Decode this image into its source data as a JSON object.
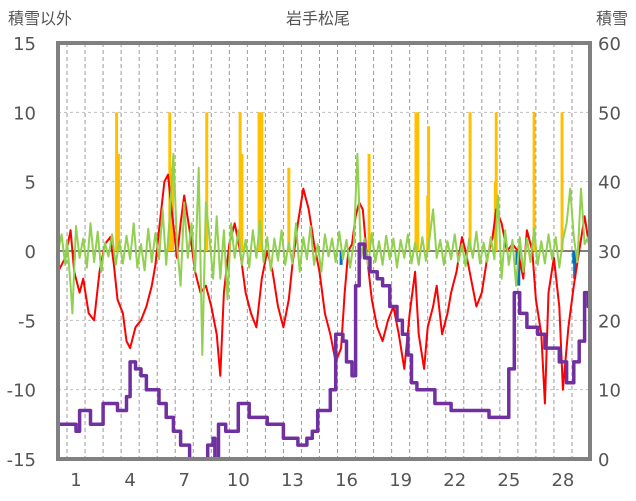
{
  "chart_data": {
    "type": "line",
    "title": "岩手松尾",
    "left_axis": {
      "label": "積雪以外",
      "ylim": [
        -15,
        15
      ],
      "ticks": [
        15,
        10,
        5,
        0,
        -5,
        -10,
        -15
      ]
    },
    "right_axis": {
      "label": "積雪",
      "ylim": [
        0,
        60
      ],
      "ticks": [
        60,
        50,
        40,
        30,
        20,
        10,
        0
      ]
    },
    "x_axis": {
      "xlim": [
        0,
        29.5
      ],
      "tick_labels": [
        "1",
        "4",
        "7",
        "10",
        "13",
        "16",
        "19",
        "22",
        "25",
        "28"
      ],
      "tick_values": [
        1,
        4,
        7,
        10,
        13,
        16,
        19,
        22,
        25,
        28
      ]
    },
    "gridlines": {
      "horizontal": "dashed",
      "vertical": "dashed-daily"
    },
    "colors": {
      "snow_depth": "#7030a0",
      "precipitation": "#ffc000",
      "temperature": "#ff0000",
      "temp_change": "#92d050",
      "neg_bars": "#0070c0",
      "frame": "#808080"
    },
    "snow_depth": [
      [
        0,
        5
      ],
      [
        0.8,
        5
      ],
      [
        1.0,
        4
      ],
      [
        1.2,
        7
      ],
      [
        1.6,
        7
      ],
      [
        1.8,
        5
      ],
      [
        2.2,
        5
      ],
      [
        2.5,
        8
      ],
      [
        3.0,
        8
      ],
      [
        3.3,
        7
      ],
      [
        3.8,
        9
      ],
      [
        4.0,
        14
      ],
      [
        4.3,
        13
      ],
      [
        4.6,
        12
      ],
      [
        4.9,
        10
      ],
      [
        5.3,
        10
      ],
      [
        5.6,
        8
      ],
      [
        6.0,
        6
      ],
      [
        6.4,
        4
      ],
      [
        6.8,
        2
      ],
      [
        7.3,
        0
      ],
      [
        7.9,
        0
      ],
      [
        8.3,
        2
      ],
      [
        8.6,
        3
      ],
      [
        8.7,
        0
      ],
      [
        8.9,
        5
      ],
      [
        9.3,
        4
      ],
      [
        9.8,
        4
      ],
      [
        10.0,
        8
      ],
      [
        10.3,
        8
      ],
      [
        10.6,
        6
      ],
      [
        11.2,
        6
      ],
      [
        11.6,
        5
      ],
      [
        12.2,
        5
      ],
      [
        12.5,
        3
      ],
      [
        13.0,
        3
      ],
      [
        13.3,
        2
      ],
      [
        13.8,
        3
      ],
      [
        14.1,
        4
      ],
      [
        14.4,
        7
      ],
      [
        14.8,
        7
      ],
      [
        15.1,
        10
      ],
      [
        15.4,
        18
      ],
      [
        15.8,
        17
      ],
      [
        16.0,
        14
      ],
      [
        16.3,
        12
      ],
      [
        16.5,
        25
      ],
      [
        16.7,
        31
      ],
      [
        17.0,
        29
      ],
      [
        17.3,
        27
      ],
      [
        17.7,
        26
      ],
      [
        18.0,
        25
      ],
      [
        18.4,
        22
      ],
      [
        18.8,
        20
      ],
      [
        19.1,
        18
      ],
      [
        19.4,
        15
      ],
      [
        19.6,
        11
      ],
      [
        19.9,
        10
      ],
      [
        20.4,
        10
      ],
      [
        20.9,
        8
      ],
      [
        21.4,
        8
      ],
      [
        21.8,
        7
      ],
      [
        22.6,
        7
      ],
      [
        23.2,
        7
      ],
      [
        23.9,
        6
      ],
      [
        24.6,
        6
      ],
      [
        25.0,
        13
      ],
      [
        25.3,
        24
      ],
      [
        25.6,
        21
      ],
      [
        26.0,
        19
      ],
      [
        26.6,
        18
      ],
      [
        27.0,
        16
      ],
      [
        27.8,
        14
      ],
      [
        28.2,
        11
      ],
      [
        28.6,
        14
      ],
      [
        28.9,
        17
      ],
      [
        29.2,
        24
      ],
      [
        29.4,
        22
      ],
      [
        29.5,
        23
      ]
    ],
    "precipitation_spikes": [
      [
        3.25,
        10
      ],
      [
        3.35,
        7
      ],
      [
        6.2,
        10
      ],
      [
        6.35,
        6
      ],
      [
        8.25,
        10
      ],
      [
        10.1,
        10
      ],
      [
        10.2,
        7
      ],
      [
        11.15,
        10
      ],
      [
        11.3,
        10
      ],
      [
        12.8,
        6
      ],
      [
        17.25,
        7
      ],
      [
        19.85,
        10
      ],
      [
        19.95,
        10
      ],
      [
        20.5,
        4
      ],
      [
        20.55,
        9
      ],
      [
        22.85,
        10
      ],
      [
        24.25,
        5
      ],
      [
        24.3,
        10
      ],
      [
        26.4,
        10
      ],
      [
        27.95,
        10
      ]
    ],
    "negative_bars": [
      [
        0.9,
        -0.6
      ],
      [
        15.7,
        -1.0
      ],
      [
        25.45,
        -1.0
      ],
      [
        25.55,
        -2.5
      ],
      [
        28.6,
        -0.9
      ],
      [
        28.65,
        -2.0
      ]
    ],
    "temperature": [
      [
        0.0,
        -1.5
      ],
      [
        0.4,
        -0.5
      ],
      [
        0.7,
        1.5
      ],
      [
        0.9,
        -1.5
      ],
      [
        1.2,
        -3.0
      ],
      [
        1.4,
        -2.0
      ],
      [
        1.7,
        -4.5
      ],
      [
        2.0,
        -5.0
      ],
      [
        2.3,
        -1.5
      ],
      [
        2.6,
        0.5
      ],
      [
        2.9,
        1.0
      ],
      [
        3.1,
        -1.0
      ],
      [
        3.3,
        -3.5
      ],
      [
        3.6,
        -4.5
      ],
      [
        3.8,
        -6.5
      ],
      [
        4.0,
        -7.0
      ],
      [
        4.3,
        -5.5
      ],
      [
        4.6,
        -5.0
      ],
      [
        4.9,
        -4.0
      ],
      [
        5.2,
        -2.5
      ],
      [
        5.4,
        -1.0
      ],
      [
        5.6,
        1.5
      ],
      [
        5.9,
        5.0
      ],
      [
        6.1,
        5.5
      ],
      [
        6.3,
        3.0
      ],
      [
        6.6,
        -0.5
      ],
      [
        6.8,
        2.0
      ],
      [
        7.0,
        4.0
      ],
      [
        7.3,
        1.5
      ],
      [
        7.6,
        -1.5
      ],
      [
        7.9,
        -3.0
      ],
      [
        8.2,
        -2.5
      ],
      [
        8.5,
        -4.0
      ],
      [
        8.8,
        -6.0
      ],
      [
        9.0,
        -9.0
      ],
      [
        9.2,
        -3.0
      ],
      [
        9.5,
        0.5
      ],
      [
        9.8,
        2.0
      ],
      [
        10.1,
        0.0
      ],
      [
        10.4,
        -3.0
      ],
      [
        10.7,
        -4.5
      ],
      [
        11.0,
        -5.5
      ],
      [
        11.3,
        -2.0
      ],
      [
        11.6,
        0.0
      ],
      [
        11.9,
        -1.5
      ],
      [
        12.2,
        -4.0
      ],
      [
        12.5,
        -5.5
      ],
      [
        12.8,
        -3.5
      ],
      [
        13.0,
        -1.0
      ],
      [
        13.3,
        2.0
      ],
      [
        13.6,
        4.5
      ],
      [
        13.9,
        3.0
      ],
      [
        14.2,
        0.5
      ],
      [
        14.5,
        -1.5
      ],
      [
        14.8,
        -4.5
      ],
      [
        15.1,
        -6.0
      ],
      [
        15.4,
        -8.0
      ],
      [
        15.7,
        -7.0
      ],
      [
        15.9,
        -3.0
      ],
      [
        16.1,
        0.0
      ],
      [
        16.3,
        0.5
      ],
      [
        16.5,
        2.5
      ],
      [
        16.7,
        3.5
      ],
      [
        16.9,
        3.0
      ],
      [
        17.1,
        0.0
      ],
      [
        17.4,
        -3.5
      ],
      [
        17.7,
        -5.5
      ],
      [
        18.0,
        -6.5
      ],
      [
        18.3,
        -5.0
      ],
      [
        18.6,
        -4.0
      ],
      [
        18.9,
        -6.0
      ],
      [
        19.2,
        -8.5
      ],
      [
        19.5,
        -4.5
      ],
      [
        19.8,
        -1.5
      ],
      [
        20.0,
        -6.0
      ],
      [
        20.3,
        -8.5
      ],
      [
        20.5,
        -5.5
      ],
      [
        20.8,
        -4.0
      ],
      [
        21.0,
        -2.5
      ],
      [
        21.3,
        -6.0
      ],
      [
        21.6,
        -4.5
      ],
      [
        21.8,
        -3.0
      ],
      [
        22.1,
        -1.5
      ],
      [
        22.4,
        1.0
      ],
      [
        22.6,
        0.0
      ],
      [
        22.9,
        -2.0
      ],
      [
        23.2,
        -4.0
      ],
      [
        23.5,
        -3.0
      ],
      [
        23.8,
        -0.5
      ],
      [
        24.1,
        1.0
      ],
      [
        24.3,
        3.0
      ],
      [
        24.6,
        2.0
      ],
      [
        24.9,
        0.0
      ],
      [
        25.2,
        0.5
      ],
      [
        25.5,
        0.0
      ],
      [
        25.8,
        -2.0
      ],
      [
        26.0,
        1.5
      ],
      [
        26.3,
        0.0
      ],
      [
        26.5,
        -3.5
      ],
      [
        26.8,
        -6.0
      ],
      [
        27.0,
        -11.0
      ],
      [
        27.2,
        -3.0
      ],
      [
        27.5,
        -0.5
      ],
      [
        27.8,
        -4.0
      ],
      [
        28.0,
        -10.0
      ],
      [
        28.3,
        -5.5
      ],
      [
        28.6,
        -2.5
      ],
      [
        28.9,
        0.0
      ],
      [
        29.2,
        2.5
      ],
      [
        29.5,
        0.0
      ]
    ],
    "temp_change": [
      [
        0.0,
        0.0
      ],
      [
        0.2,
        1.2
      ],
      [
        0.4,
        -1.0
      ],
      [
        0.5,
        0.8
      ],
      [
        0.7,
        -2.5
      ],
      [
        0.8,
        -4.5
      ],
      [
        1.0,
        1.8
      ],
      [
        1.2,
        -0.5
      ],
      [
        1.4,
        0.9
      ],
      [
        1.6,
        -1.2
      ],
      [
        1.8,
        2.0
      ],
      [
        2.0,
        -0.8
      ],
      [
        2.2,
        1.4
      ],
      [
        2.4,
        -1.5
      ],
      [
        2.6,
        0.6
      ],
      [
        2.8,
        -0.4
      ],
      [
        3.0,
        1.2
      ],
      [
        3.2,
        -1.0
      ],
      [
        3.4,
        0.7
      ],
      [
        3.6,
        -0.9
      ],
      [
        3.8,
        1.1
      ],
      [
        4.0,
        -0.6
      ],
      [
        4.2,
        2.0
      ],
      [
        4.4,
        -1.2
      ],
      [
        4.6,
        0.5
      ],
      [
        4.8,
        -1.4
      ],
      [
        5.0,
        1.6
      ],
      [
        5.2,
        -0.8
      ],
      [
        5.4,
        1.3
      ],
      [
        5.6,
        -0.6
      ],
      [
        5.8,
        3.0
      ],
      [
        6.0,
        -1.0
      ],
      [
        6.2,
        2.5
      ],
      [
        6.4,
        7.0
      ],
      [
        6.6,
        0.5
      ],
      [
        6.8,
        -2.5
      ],
      [
        7.0,
        3.5
      ],
      [
        7.2,
        -0.5
      ],
      [
        7.4,
        2.0
      ],
      [
        7.6,
        -1.5
      ],
      [
        7.8,
        6.0
      ],
      [
        8.0,
        -7.5
      ],
      [
        8.2,
        3.5
      ],
      [
        8.4,
        1.0
      ],
      [
        8.6,
        -2.0
      ],
      [
        8.8,
        2.5
      ],
      [
        9.0,
        -2.0
      ],
      [
        9.2,
        1.5
      ],
      [
        9.4,
        -3.5
      ],
      [
        9.6,
        2.0
      ],
      [
        9.8,
        -0.5
      ],
      [
        10.0,
        1.5
      ],
      [
        10.2,
        -1.0
      ],
      [
        10.4,
        0.8
      ],
      [
        10.6,
        -1.2
      ],
      [
        10.8,
        1.5
      ],
      [
        11.0,
        -0.5
      ],
      [
        11.2,
        2.2
      ],
      [
        11.4,
        -0.8
      ],
      [
        11.6,
        1.0
      ],
      [
        11.8,
        -1.4
      ],
      [
        12.0,
        0.9
      ],
      [
        12.2,
        -0.7
      ],
      [
        12.4,
        1.5
      ],
      [
        12.6,
        -1.0
      ],
      [
        12.8,
        0.6
      ],
      [
        13.0,
        -0.9
      ],
      [
        13.2,
        2.0
      ],
      [
        13.4,
        -1.5
      ],
      [
        13.6,
        1.0
      ],
      [
        13.8,
        -0.6
      ],
      [
        14.0,
        1.8
      ],
      [
        14.2,
        -1.0
      ],
      [
        14.4,
        0.5
      ],
      [
        14.6,
        -1.5
      ],
      [
        14.8,
        1.2
      ],
      [
        15.0,
        -0.4
      ],
      [
        15.2,
        0.9
      ],
      [
        15.4,
        -0.8
      ],
      [
        15.6,
        1.4
      ],
      [
        15.8,
        -0.6
      ],
      [
        16.0,
        0.8
      ],
      [
        16.2,
        -1.2
      ],
      [
        16.4,
        0.6
      ],
      [
        16.6,
        7.0
      ],
      [
        16.8,
        -0.5
      ],
      [
        17.0,
        0.9
      ],
      [
        17.2,
        -1.1
      ],
      [
        17.4,
        1.3
      ],
      [
        17.6,
        -0.8
      ],
      [
        17.8,
        0.7
      ],
      [
        18.0,
        -1.0
      ],
      [
        18.2,
        1.1
      ],
      [
        18.4,
        -0.6
      ],
      [
        18.6,
        0.9
      ],
      [
        18.8,
        -1.2
      ],
      [
        19.0,
        0.8
      ],
      [
        19.2,
        -0.5
      ],
      [
        19.4,
        1.2
      ],
      [
        19.6,
        -0.9
      ],
      [
        19.8,
        0.6
      ],
      [
        20.0,
        -1.0
      ],
      [
        20.2,
        1.0
      ],
      [
        20.4,
        -0.7
      ],
      [
        20.6,
        0.9
      ],
      [
        20.8,
        3.0
      ],
      [
        21.0,
        -0.5
      ],
      [
        21.2,
        0.8
      ],
      [
        21.4,
        -1.0
      ],
      [
        21.6,
        0.7
      ],
      [
        21.8,
        -0.6
      ],
      [
        22.0,
        1.2
      ],
      [
        22.2,
        -0.8
      ],
      [
        22.4,
        0.5
      ],
      [
        22.6,
        -1.1
      ],
      [
        22.8,
        0.9
      ],
      [
        23.0,
        -0.5
      ],
      [
        23.2,
        1.4
      ],
      [
        23.4,
        -0.9
      ],
      [
        23.6,
        0.6
      ],
      [
        23.8,
        -0.8
      ],
      [
        24.0,
        1.0
      ],
      [
        24.2,
        -0.6
      ],
      [
        24.4,
        4.0
      ],
      [
        24.6,
        -2.0
      ],
      [
        24.8,
        1.5
      ],
      [
        25.0,
        -1.0
      ],
      [
        25.2,
        0.8
      ],
      [
        25.4,
        -2.5
      ],
      [
        25.6,
        1.0
      ],
      [
        25.8,
        -1.5
      ],
      [
        26.0,
        0.9
      ],
      [
        26.2,
        -0.8
      ],
      [
        26.4,
        1.6
      ],
      [
        26.6,
        -1.0
      ],
      [
        26.8,
        0.7
      ],
      [
        27.0,
        -0.9
      ],
      [
        27.2,
        1.2
      ],
      [
        27.4,
        -0.6
      ],
      [
        27.6,
        1.0
      ],
      [
        27.8,
        -1.2
      ],
      [
        28.0,
        0.8
      ],
      [
        28.2,
        2.0
      ],
      [
        28.4,
        4.5
      ],
      [
        28.6,
        1.0
      ],
      [
        28.8,
        -0.8
      ],
      [
        29.0,
        4.5
      ],
      [
        29.2,
        0.5
      ],
      [
        29.4,
        1.0
      ],
      [
        29.5,
        0.0
      ]
    ]
  }
}
